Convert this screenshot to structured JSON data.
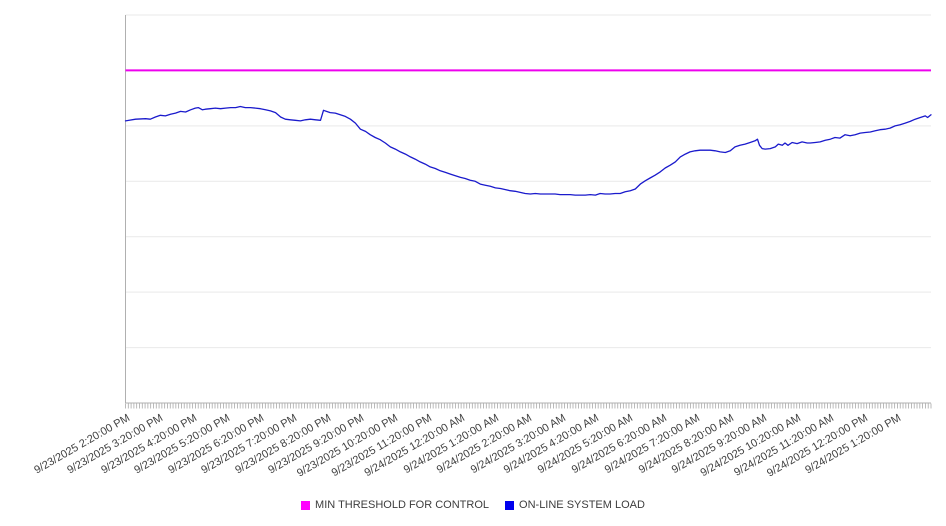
{
  "chart_data": {
    "type": "line",
    "title": "",
    "xlabel": "",
    "ylabel": "",
    "grid": true,
    "background": "#ffffff",
    "legend_position": "bottom-center",
    "y_axis": {
      "tick_labels_visible": false,
      "ylim": [
        0,
        7
      ],
      "gridline_interval": 1,
      "units": "unlabeled"
    },
    "x_axis": {
      "range_hours": 24,
      "minor_tick_interval_minutes": 5,
      "tick_labels": [
        "9/23/2025 2:20:00 PM",
        "9/23/2025 3:20:00 PM",
        "9/23/2025 4:20:00 PM",
        "9/23/2025 5:20:00 PM",
        "9/23/2025 6:20:00 PM",
        "9/23/2025 7:20:00 PM",
        "9/23/2025 8:20:00 PM",
        "9/23/2025 9:20:00 PM",
        "9/23/2025 10:20:00 PM",
        "9/23/2025 11:20:00 PM",
        "9/24/2025 12:20:00 AM",
        "9/24/2025 1:20:00 AM",
        "9/24/2025 2:20:00 AM",
        "9/24/2025 3:20:00 AM",
        "9/24/2025 4:20:00 AM",
        "9/24/2025 5:20:00 AM",
        "9/24/2025 6:20:00 AM",
        "9/24/2025 7:20:00 AM",
        "9/24/2025 8:20:00 AM",
        "9/24/2025 9:20:00 AM",
        "9/24/2025 10:20:00 AM",
        "9/24/2025 11:20:00 AM",
        "9/24/2025 12:20:00 PM",
        "9/24/2025 1:20:00 PM"
      ]
    },
    "series": [
      {
        "name": "MIN THRESHOLD FOR CONTROL",
        "color": "#ee00ee",
        "kind": "constant",
        "value": 6.0
      },
      {
        "name": "ON-LINE SYSTEM LOAD",
        "color": "#1a1acc",
        "kind": "points",
        "points_hours_value": [
          [
            0,
            5.09
          ],
          [
            0.3,
            5.12
          ],
          [
            0.6,
            5.13
          ],
          [
            0.74,
            5.12
          ],
          [
            0.89,
            5.16
          ],
          [
            1.04,
            5.19
          ],
          [
            1.19,
            5.18
          ],
          [
            1.34,
            5.21
          ],
          [
            1.49,
            5.23
          ],
          [
            1.64,
            5.26
          ],
          [
            1.79,
            5.25
          ],
          [
            1.94,
            5.29
          ],
          [
            2.08,
            5.32
          ],
          [
            2.17,
            5.33
          ],
          [
            2.29,
            5.29
          ],
          [
            2.38,
            5.3
          ],
          [
            2.53,
            5.31
          ],
          [
            2.68,
            5.32
          ],
          [
            2.83,
            5.31
          ],
          [
            2.98,
            5.32
          ],
          [
            3.13,
            5.33
          ],
          [
            3.28,
            5.33
          ],
          [
            3.42,
            5.35
          ],
          [
            3.57,
            5.33
          ],
          [
            3.72,
            5.33
          ],
          [
            3.87,
            5.32
          ],
          [
            4.02,
            5.31
          ],
          [
            4.17,
            5.29
          ],
          [
            4.32,
            5.27
          ],
          [
            4.47,
            5.24
          ],
          [
            4.62,
            5.16
          ],
          [
            4.76,
            5.12
          ],
          [
            4.91,
            5.11
          ],
          [
            5.06,
            5.1
          ],
          [
            5.21,
            5.09
          ],
          [
            5.36,
            5.11
          ],
          [
            5.51,
            5.12
          ],
          [
            5.66,
            5.11
          ],
          [
            5.81,
            5.1
          ],
          [
            5.9,
            5.28
          ],
          [
            5.99,
            5.26
          ],
          [
            6.1,
            5.24
          ],
          [
            6.25,
            5.23
          ],
          [
            6.4,
            5.2
          ],
          [
            6.55,
            5.17
          ],
          [
            6.7,
            5.12
          ],
          [
            6.85,
            5.05
          ],
          [
            7,
            4.94
          ],
          [
            7.15,
            4.9
          ],
          [
            7.29,
            4.84
          ],
          [
            7.44,
            4.79
          ],
          [
            7.59,
            4.75
          ],
          [
            7.74,
            4.69
          ],
          [
            7.89,
            4.62
          ],
          [
            8.04,
            4.58
          ],
          [
            8.19,
            4.53
          ],
          [
            8.34,
            4.49
          ],
          [
            8.49,
            4.44
          ],
          [
            8.63,
            4.4
          ],
          [
            8.78,
            4.35
          ],
          [
            8.93,
            4.31
          ],
          [
            9.08,
            4.26
          ],
          [
            9.23,
            4.23
          ],
          [
            9.38,
            4.19
          ],
          [
            9.53,
            4.16
          ],
          [
            9.68,
            4.13
          ],
          [
            9.83,
            4.1
          ],
          [
            9.98,
            4.07
          ],
          [
            10.12,
            4.05
          ],
          [
            10.27,
            4.02
          ],
          [
            10.42,
            4
          ],
          [
            10.57,
            3.95
          ],
          [
            10.72,
            3.93
          ],
          [
            10.87,
            3.91
          ],
          [
            11.02,
            3.88
          ],
          [
            11.17,
            3.87
          ],
          [
            11.32,
            3.85
          ],
          [
            11.46,
            3.83
          ],
          [
            11.61,
            3.82
          ],
          [
            11.76,
            3.8
          ],
          [
            11.91,
            3.78
          ],
          [
            12.06,
            3.77
          ],
          [
            12.21,
            3.78
          ],
          [
            12.36,
            3.77
          ],
          [
            12.51,
            3.77
          ],
          [
            12.66,
            3.77
          ],
          [
            12.8,
            3.77
          ],
          [
            12.95,
            3.76
          ],
          [
            13.1,
            3.76
          ],
          [
            13.25,
            3.76
          ],
          [
            13.4,
            3.75
          ],
          [
            13.55,
            3.75
          ],
          [
            13.7,
            3.75
          ],
          [
            13.85,
            3.76
          ],
          [
            14,
            3.75
          ],
          [
            14.14,
            3.78
          ],
          [
            14.29,
            3.77
          ],
          [
            14.44,
            3.77
          ],
          [
            14.59,
            3.78
          ],
          [
            14.74,
            3.78
          ],
          [
            14.89,
            3.81
          ],
          [
            15.04,
            3.83
          ],
          [
            15.19,
            3.86
          ],
          [
            15.34,
            3.95
          ],
          [
            15.49,
            4.01
          ],
          [
            15.63,
            4.06
          ],
          [
            15.78,
            4.11
          ],
          [
            15.93,
            4.17
          ],
          [
            16.08,
            4.24
          ],
          [
            16.23,
            4.29
          ],
          [
            16.38,
            4.35
          ],
          [
            16.53,
            4.44
          ],
          [
            16.68,
            4.49
          ],
          [
            16.82,
            4.53
          ],
          [
            16.97,
            4.55
          ],
          [
            17.12,
            4.56
          ],
          [
            17.27,
            4.56
          ],
          [
            17.42,
            4.56
          ],
          [
            17.57,
            4.55
          ],
          [
            17.72,
            4.53
          ],
          [
            17.87,
            4.52
          ],
          [
            18.02,
            4.55
          ],
          [
            18.16,
            4.62
          ],
          [
            18.31,
            4.65
          ],
          [
            18.46,
            4.67
          ],
          [
            18.61,
            4.7
          ],
          [
            18.76,
            4.73
          ],
          [
            18.83,
            4.76
          ],
          [
            18.89,
            4.65
          ],
          [
            18.97,
            4.59
          ],
          [
            19.06,
            4.58
          ],
          [
            19.21,
            4.59
          ],
          [
            19.36,
            4.62
          ],
          [
            19.45,
            4.67
          ],
          [
            19.57,
            4.65
          ],
          [
            19.65,
            4.69
          ],
          [
            19.74,
            4.65
          ],
          [
            19.86,
            4.7
          ],
          [
            20.01,
            4.68
          ],
          [
            20.16,
            4.71
          ],
          [
            20.31,
            4.69
          ],
          [
            20.4,
            4.69
          ],
          [
            20.55,
            4.7
          ],
          [
            20.7,
            4.71
          ],
          [
            20.85,
            4.74
          ],
          [
            21,
            4.76
          ],
          [
            21.14,
            4.79
          ],
          [
            21.29,
            4.78
          ],
          [
            21.44,
            4.84
          ],
          [
            21.59,
            4.82
          ],
          [
            21.74,
            4.84
          ],
          [
            21.89,
            4.87
          ],
          [
            22.04,
            4.88
          ],
          [
            22.19,
            4.89
          ],
          [
            22.34,
            4.91
          ],
          [
            22.48,
            4.93
          ],
          [
            22.63,
            4.94
          ],
          [
            22.78,
            4.96
          ],
          [
            22.93,
            5
          ],
          [
            23.08,
            5.02
          ],
          [
            23.23,
            5.05
          ],
          [
            23.38,
            5.08
          ],
          [
            23.53,
            5.12
          ],
          [
            23.68,
            5.15
          ],
          [
            23.83,
            5.18
          ],
          [
            23.9,
            5.15
          ],
          [
            24,
            5.2
          ]
        ]
      }
    ],
    "colors": {
      "gridline": "#e9e9e9",
      "axis": "#b0b0b0",
      "minor_tick": "#a8a8a8",
      "tick_label_text": "#404040",
      "legend_text": "#3d3d3d",
      "legend_swatch_threshold": "#ff00ff",
      "legend_swatch_load": "#0000ee"
    }
  },
  "legend": {
    "items": [
      {
        "label": "MIN THRESHOLD FOR CONTROL"
      },
      {
        "label": "ON-LINE SYSTEM LOAD"
      }
    ]
  }
}
